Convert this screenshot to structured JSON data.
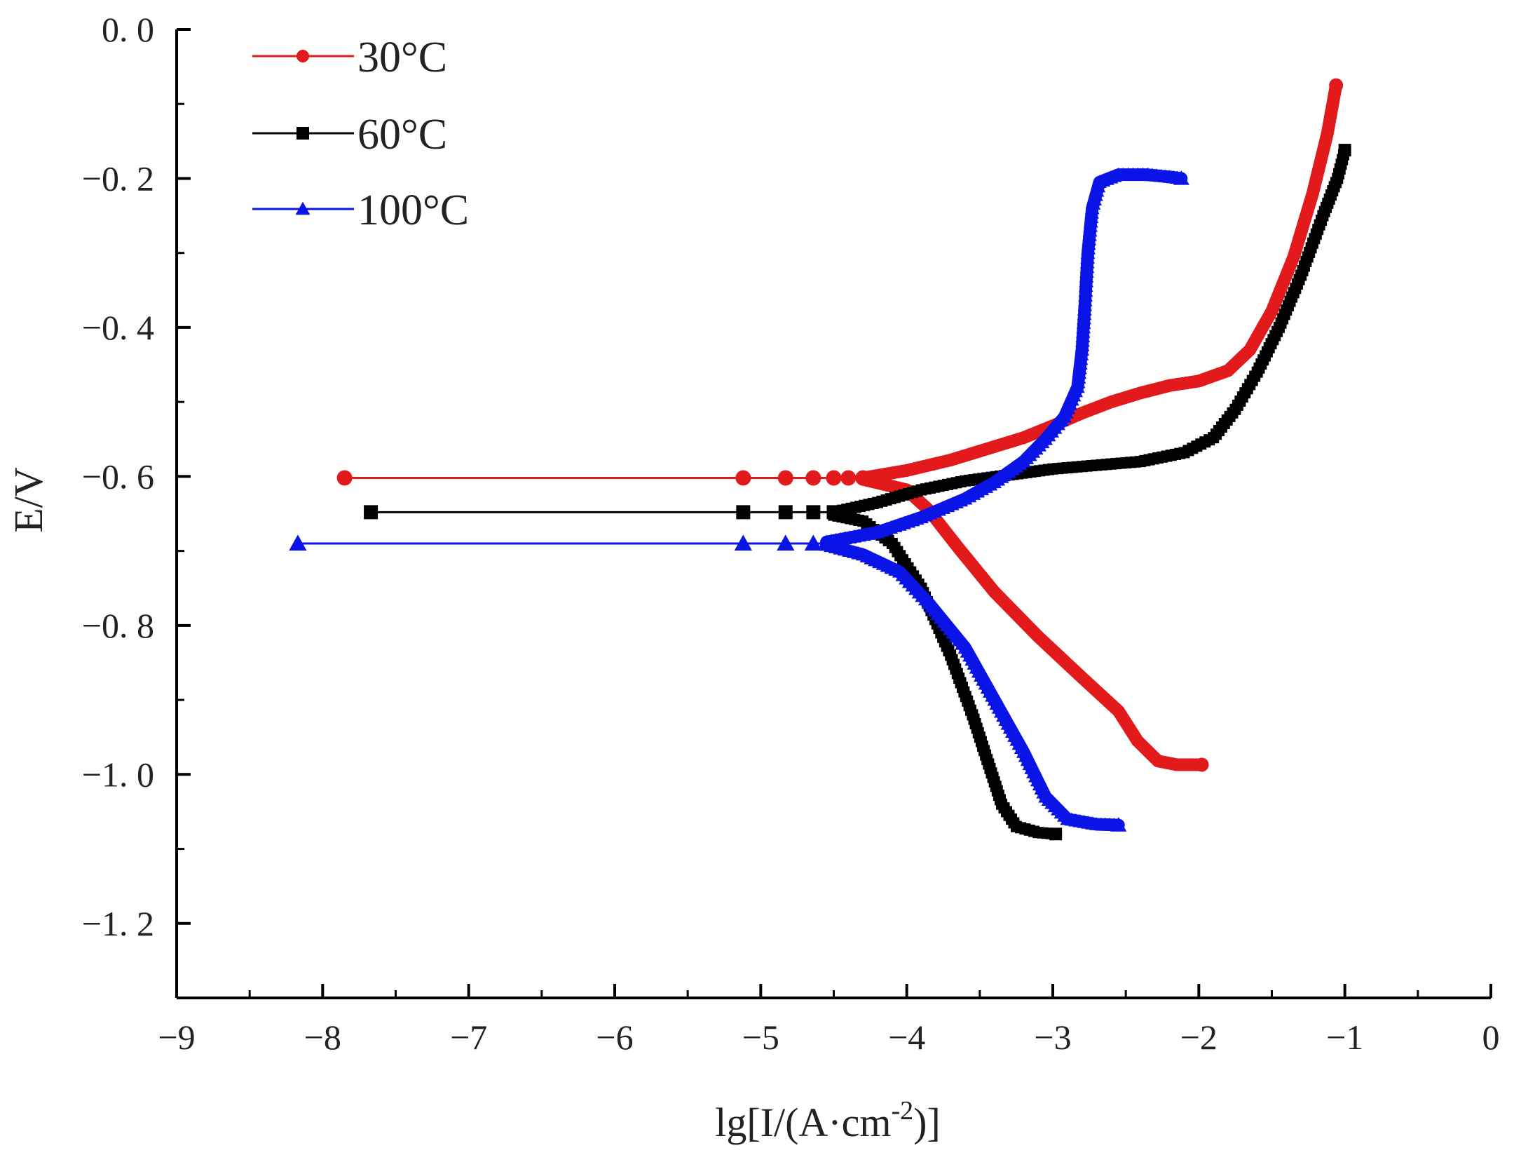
{
  "chart_data": {
    "type": "line",
    "title": "",
    "xlabel": "lg[I/(A·cm^-2)]",
    "xlabel_parts": {
      "main": "lg[I/(A·cm",
      "superscript": "-2",
      "tail": ")]"
    },
    "ylabel": "E/V",
    "xlim": [
      -9,
      0
    ],
    "ylim": [
      -1.3,
      0.0
    ],
    "x_ticks": [
      -9,
      -8,
      -7,
      -6,
      -5,
      -4,
      -3,
      -2,
      -1,
      0
    ],
    "x_tick_labels": [
      "−9",
      "−8",
      "−7",
      "−6",
      "−5",
      "−4",
      "−3",
      "−2",
      "−1",
      "0"
    ],
    "y_ticks": [
      0.0,
      -0.2,
      -0.4,
      -0.6,
      -0.8,
      -1.0,
      -1.2
    ],
    "y_tick_labels": [
      "0. 0",
      "−0. 2",
      "−0. 4",
      "−0. 6",
      "−0. 8",
      "−1. 0",
      "−1. 2"
    ],
    "grid": false,
    "legend_position": "top-left",
    "series": [
      {
        "name": "30°C",
        "color": "#e31a1c",
        "marker": "circle",
        "anodic": [
          [
            -4.3,
            -0.602
          ],
          [
            -4.0,
            -0.592
          ],
          [
            -3.7,
            -0.578
          ],
          [
            -3.5,
            -0.566
          ],
          [
            -3.2,
            -0.548
          ],
          [
            -3.0,
            -0.532
          ],
          [
            -2.8,
            -0.515
          ],
          [
            -2.6,
            -0.5
          ],
          [
            -2.4,
            -0.488
          ],
          [
            -2.2,
            -0.478
          ],
          [
            -2.0,
            -0.472
          ],
          [
            -1.8,
            -0.458
          ],
          [
            -1.65,
            -0.43
          ],
          [
            -1.5,
            -0.378
          ],
          [
            -1.35,
            -0.305
          ],
          [
            -1.22,
            -0.22
          ],
          [
            -1.12,
            -0.14
          ],
          [
            -1.06,
            -0.075
          ]
        ],
        "cathodic": [
          [
            -4.3,
            -0.604
          ],
          [
            -4.0,
            -0.618
          ],
          [
            -3.85,
            -0.645
          ],
          [
            -3.65,
            -0.695
          ],
          [
            -3.4,
            -0.755
          ],
          [
            -3.1,
            -0.815
          ],
          [
            -2.8,
            -0.87
          ],
          [
            -2.55,
            -0.915
          ],
          [
            -2.42,
            -0.955
          ],
          [
            -2.28,
            -0.982
          ],
          [
            -2.15,
            -0.987
          ],
          [
            -1.98,
            -0.987
          ]
        ],
        "flat": [
          [
            -7.85,
            -0.602
          ],
          [
            -5.12,
            -0.602
          ],
          [
            -4.83,
            -0.602
          ],
          [
            -4.64,
            -0.602
          ],
          [
            -4.5,
            -0.602
          ],
          [
            -4.4,
            -0.602
          ],
          [
            -4.3,
            -0.602
          ]
        ]
      },
      {
        "name": "60°C",
        "color": "#000000",
        "marker": "square",
        "anodic": [
          [
            -4.5,
            -0.648
          ],
          [
            -4.2,
            -0.635
          ],
          [
            -3.9,
            -0.618
          ],
          [
            -3.6,
            -0.606
          ],
          [
            -3.3,
            -0.598
          ],
          [
            -3.0,
            -0.59
          ],
          [
            -2.7,
            -0.585
          ],
          [
            -2.4,
            -0.58
          ],
          [
            -2.1,
            -0.568
          ],
          [
            -1.9,
            -0.548
          ],
          [
            -1.75,
            -0.51
          ],
          [
            -1.6,
            -0.46
          ],
          [
            -1.45,
            -0.4
          ],
          [
            -1.3,
            -0.33
          ],
          [
            -1.15,
            -0.25
          ],
          [
            -1.05,
            -0.2
          ],
          [
            -1.0,
            -0.162
          ]
        ],
        "cathodic": [
          [
            -4.5,
            -0.652
          ],
          [
            -4.3,
            -0.66
          ],
          [
            -4.1,
            -0.69
          ],
          [
            -3.9,
            -0.75
          ],
          [
            -3.7,
            -0.84
          ],
          [
            -3.55,
            -0.92
          ],
          [
            -3.45,
            -0.98
          ],
          [
            -3.35,
            -1.04
          ],
          [
            -3.25,
            -1.07
          ],
          [
            -3.1,
            -1.078
          ],
          [
            -2.98,
            -1.08
          ]
        ],
        "flat": [
          [
            -7.67,
            -0.648
          ],
          [
            -5.12,
            -0.648
          ],
          [
            -4.83,
            -0.648
          ],
          [
            -4.64,
            -0.648
          ],
          [
            -4.5,
            -0.648
          ]
        ]
      },
      {
        "name": "100°C",
        "color": "#0a14e6",
        "marker": "triangle",
        "anodic": [
          [
            -4.55,
            -0.688
          ],
          [
            -4.2,
            -0.675
          ],
          [
            -3.9,
            -0.655
          ],
          [
            -3.6,
            -0.63
          ],
          [
            -3.4,
            -0.608
          ],
          [
            -3.2,
            -0.58
          ],
          [
            -3.05,
            -0.55
          ],
          [
            -2.92,
            -0.52
          ],
          [
            -2.83,
            -0.48
          ],
          [
            -2.8,
            -0.43
          ],
          [
            -2.78,
            -0.37
          ],
          [
            -2.76,
            -0.3
          ],
          [
            -2.73,
            -0.24
          ],
          [
            -2.68,
            -0.205
          ],
          [
            -2.55,
            -0.195
          ],
          [
            -2.35,
            -0.195
          ],
          [
            -2.2,
            -0.198
          ],
          [
            -2.12,
            -0.2
          ]
        ],
        "cathodic": [
          [
            -4.55,
            -0.692
          ],
          [
            -4.3,
            -0.705
          ],
          [
            -4.05,
            -0.728
          ],
          [
            -3.85,
            -0.77
          ],
          [
            -3.6,
            -0.83
          ],
          [
            -3.4,
            -0.9
          ],
          [
            -3.2,
            -0.97
          ],
          [
            -3.05,
            -1.03
          ],
          [
            -2.9,
            -1.06
          ],
          [
            -2.7,
            -1.067
          ],
          [
            -2.55,
            -1.068
          ]
        ],
        "flat": [
          [
            -8.17,
            -0.69
          ],
          [
            -5.12,
            -0.69
          ],
          [
            -4.83,
            -0.69
          ],
          [
            -4.64,
            -0.69
          ],
          [
            -4.55,
            -0.69
          ]
        ]
      }
    ]
  }
}
